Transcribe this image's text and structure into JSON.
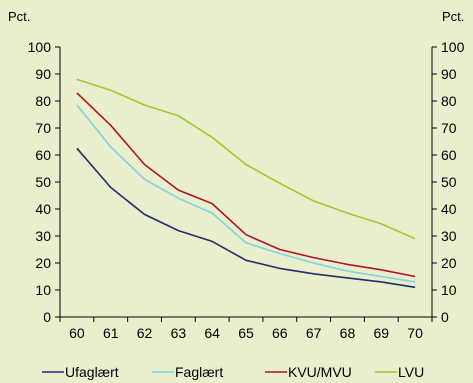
{
  "chart_data": {
    "type": "line",
    "title": "",
    "xlabel": "",
    "left_unit": "Pct.",
    "right_unit": "Pct.",
    "ylim": [
      0,
      100
    ],
    "yticks": [
      0,
      10,
      20,
      30,
      40,
      50,
      60,
      70,
      80,
      90,
      100
    ],
    "categories": [
      "60",
      "61",
      "62",
      "63",
      "64",
      "65",
      "66",
      "67",
      "68",
      "69",
      "70"
    ],
    "grid": false,
    "legend": "bottom",
    "series": [
      {
        "name": "Ufaglært",
        "color": "#1f2d6e",
        "values": [
          62.5,
          48,
          38,
          32,
          28,
          21,
          18,
          16,
          14.5,
          13,
          11
        ]
      },
      {
        "name": "Faglært",
        "color": "#7fd2e0",
        "values": [
          78.5,
          63,
          51,
          44,
          38.5,
          27.5,
          23.5,
          20,
          17,
          15,
          13
        ]
      },
      {
        "name": "KVU/MVU",
        "color": "#b0122c",
        "values": [
          83,
          71,
          56.5,
          47,
          42,
          30.5,
          25,
          22,
          19.5,
          17.5,
          15
        ]
      },
      {
        "name": "LVU",
        "color": "#a6c630",
        "values": [
          88,
          84,
          78.5,
          74.5,
          66.5,
          56.5,
          49.5,
          43,
          38.5,
          34.5,
          29
        ]
      }
    ]
  }
}
